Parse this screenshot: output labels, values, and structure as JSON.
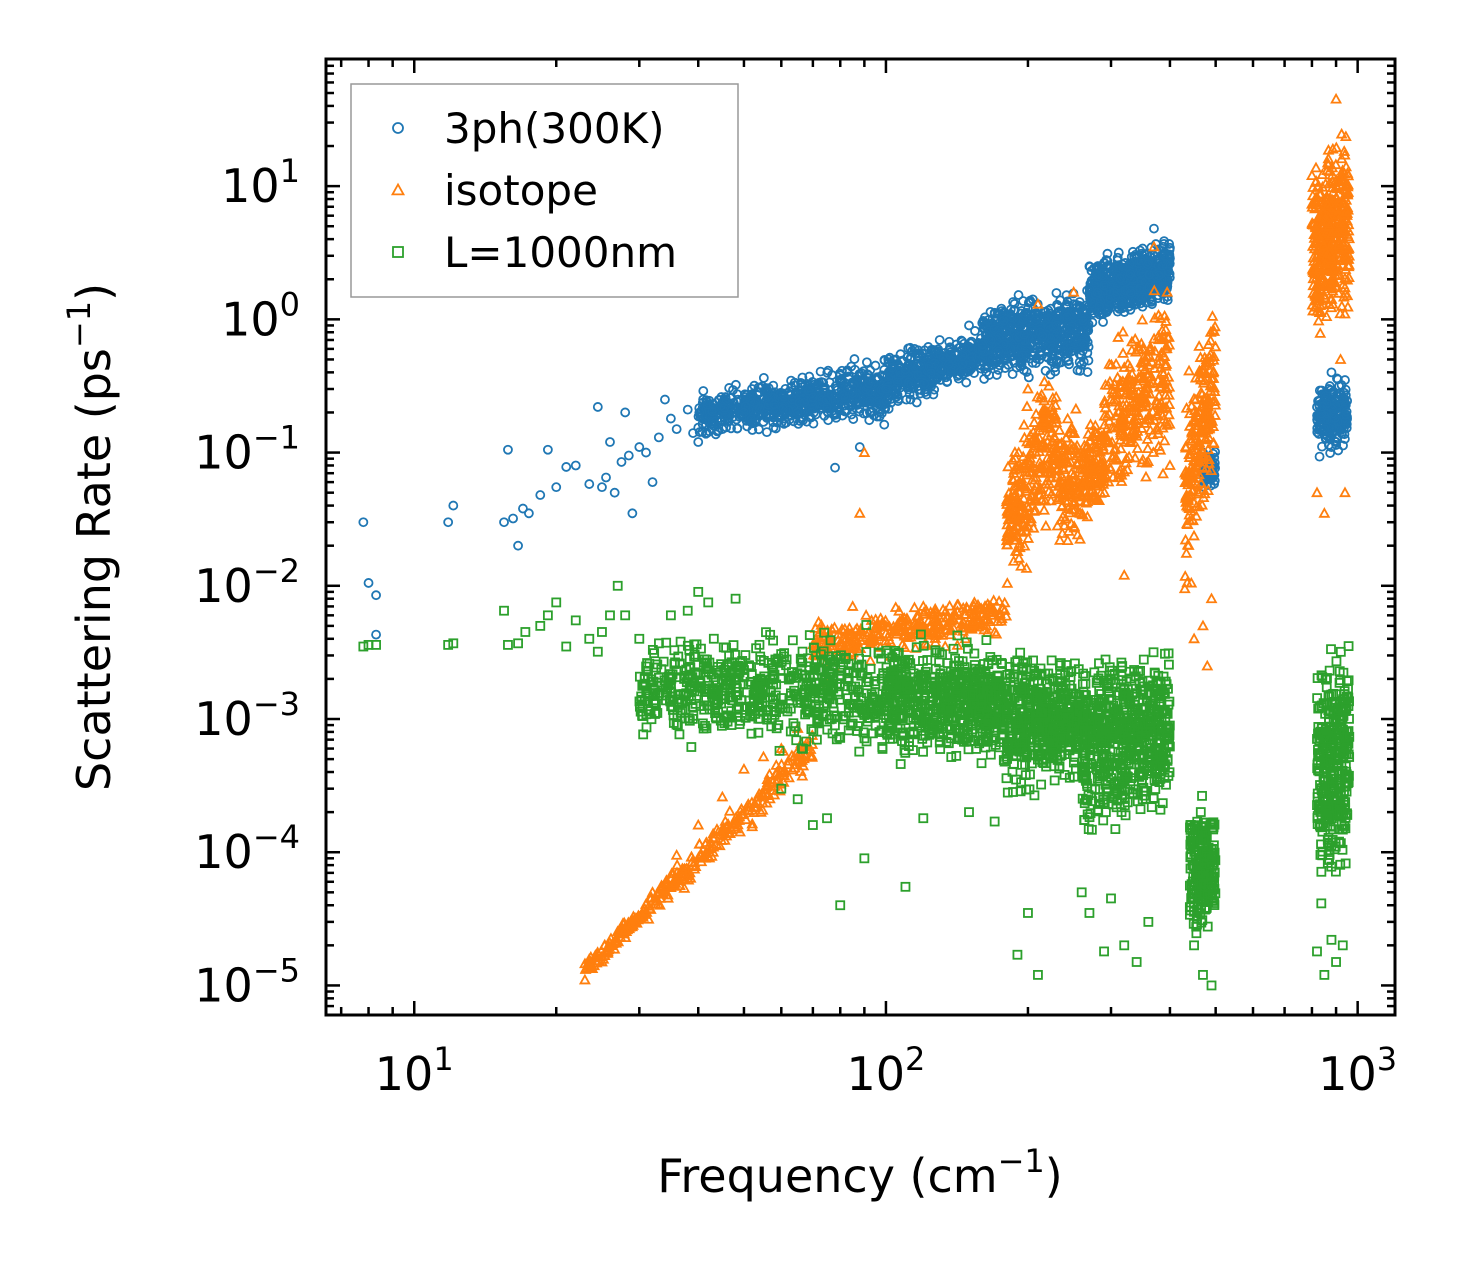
{
  "chart_data": {
    "type": "scatter",
    "title": "",
    "xlabel": "Frequency (cm",
    "xlabel_sup": "−1",
    "xlabel_end": ")",
    "ylabel": "Scattering Rate (ps",
    "ylabel_sup": "−1",
    "ylabel_end": ")",
    "xscale": "log",
    "yscale": "log",
    "xlim": [
      6.5,
      1200
    ],
    "ylim": [
      6e-06,
      90
    ],
    "x_ticks": [
      {
        "base": "10",
        "exp": "1",
        "value": 10
      },
      {
        "base": "10",
        "exp": "2",
        "value": 100
      },
      {
        "base": "10",
        "exp": "3",
        "value": 1000
      }
    ],
    "y_ticks": [
      {
        "base": "10",
        "exp": "1",
        "value": 10
      },
      {
        "base": "10",
        "exp": "0",
        "value": 1
      },
      {
        "base": "10",
        "exp": "−1",
        "value": 0.1
      },
      {
        "base": "10",
        "exp": "−2",
        "value": 0.01
      },
      {
        "base": "10",
        "exp": "−3",
        "value": 0.001
      },
      {
        "base": "10",
        "exp": "−4",
        "value": 0.0001
      },
      {
        "base": "10",
        "exp": "−5",
        "value": 1e-05
      }
    ],
    "legend_position": "top-left",
    "series": [
      {
        "name": "3ph(300K)",
        "marker": "circle",
        "color": "#1f77b4",
        "points": [
          [
            7.8,
            0.03
          ],
          [
            8.0,
            0.0105
          ],
          [
            8.3,
            0.0085
          ],
          [
            8.3,
            0.0043
          ],
          [
            11.8,
            0.03
          ],
          [
            12.1,
            0.04
          ],
          [
            15.5,
            0.03
          ],
          [
            15.8,
            0.105
          ],
          [
            16.2,
            0.032
          ],
          [
            16.6,
            0.02
          ],
          [
            17.0,
            0.038
          ],
          [
            17.5,
            0.035
          ],
          [
            18.5,
            0.048
          ],
          [
            19.2,
            0.105
          ],
          [
            20.0,
            0.055
          ],
          [
            21.0,
            0.078
          ],
          [
            22.0,
            0.08
          ],
          [
            23.5,
            0.058
          ],
          [
            24.5,
            0.22
          ],
          [
            25.0,
            0.055
          ],
          [
            25.5,
            0.065
          ],
          [
            26.0,
            0.12
          ],
          [
            26.6,
            0.05
          ],
          [
            27.5,
            0.085
          ],
          [
            28.0,
            0.2
          ],
          [
            28.5,
            0.095
          ],
          [
            29.0,
            0.035
          ],
          [
            30.0,
            0.11
          ],
          [
            31.0,
            0.1
          ],
          [
            32.0,
            0.06
          ],
          [
            33.0,
            0.13
          ],
          [
            34.0,
            0.25
          ],
          [
            35.0,
            0.18
          ],
          [
            36.0,
            0.15
          ],
          [
            38.0,
            0.21
          ],
          [
            39.0,
            0.14
          ],
          [
            40.0,
            0.12
          ],
          [
            41.0,
            0.29
          ],
          [
            43.0,
            0.23
          ],
          [
            45.0,
            0.15
          ],
          [
            47.0,
            0.26
          ],
          [
            50.0,
            0.2
          ],
          [
            52.0,
            0.3
          ],
          [
            55.0,
            0.17
          ],
          [
            58.0,
            0.23
          ],
          [
            62.0,
            0.28
          ],
          [
            65.0,
            0.2
          ],
          [
            70.0,
            0.26
          ],
          [
            75.0,
            0.22
          ],
          [
            78.0,
            0.077
          ],
          [
            80.0,
            0.38
          ],
          [
            85.0,
            0.3
          ],
          [
            88.0,
            0.11
          ],
          [
            92.0,
            0.33
          ],
          [
            95.0,
            0.45
          ],
          [
            100.0,
            0.3
          ],
          [
            105.0,
            0.5
          ],
          [
            110.0,
            0.42
          ],
          [
            115.0,
            0.6
          ],
          [
            120.0,
            0.52
          ],
          [
            130.0,
            0.7
          ],
          [
            140.0,
            0.55
          ],
          [
            150.0,
            0.9
          ],
          [
            160.0,
            0.65
          ],
          [
            170.0,
            1.1
          ],
          [
            180.0,
            0.8
          ],
          [
            200.0,
            1.2
          ],
          [
            215.0,
            0.75
          ],
          [
            230.0,
            0.9
          ],
          [
            250.0,
            1.3
          ],
          [
            270.0,
            2.5
          ],
          [
            290.0,
            1.8
          ],
          [
            310.0,
            2.9
          ],
          [
            330.0,
            2.2
          ],
          [
            350.0,
            3.4
          ],
          [
            370.0,
            4.8
          ],
          [
            390.0,
            3.0
          ],
          [
            470.0,
            0.1
          ],
          [
            480.0,
            0.065
          ],
          [
            490.0,
            0.08
          ],
          [
            820.0,
            0.22
          ],
          [
            850.0,
            0.15
          ],
          [
            880.0,
            0.4
          ],
          [
            900.0,
            0.12
          ],
          [
            920.0,
            0.28
          ],
          [
            940.0,
            0.35
          ]
        ],
        "bands": [
          {
            "x": [
              40,
              100
            ],
            "ylo": [
              0.12,
              0.15
            ],
            "yhi": [
              0.3,
              0.6
            ],
            "n": 700
          },
          {
            "x": [
              100,
              160
            ],
            "ylo": [
              0.18,
              0.35
            ],
            "yhi": [
              0.6,
              0.9
            ],
            "n": 450
          },
          {
            "x": [
              160,
              270
            ],
            "ylo": [
              0.3,
              0.35
            ],
            "yhi": [
              1.5,
              2.0
            ],
            "n": 650
          },
          {
            "x": [
              270,
              400
            ],
            "ylo": [
              0.8,
              1.2
            ],
            "yhi": [
              3.0,
              4.6
            ],
            "n": 650
          },
          {
            "x": [
              470,
              500
            ],
            "ylo": [
              0.05,
              0.05
            ],
            "yhi": [
              0.11,
              0.11
            ],
            "n": 60
          },
          {
            "x": [
              820,
              950
            ],
            "ylo": [
              0.08,
              0.1
            ],
            "yhi": [
              0.45,
              0.4
            ],
            "n": 220
          }
        ]
      },
      {
        "name": "isotope",
        "marker": "triangle",
        "color": "#ff7f0e",
        "points": [
          [
            23.0,
            1.1e-05
          ],
          [
            25.0,
            1.5e-05
          ],
          [
            28.0,
            2.6e-05
          ],
          [
            32.0,
            5e-05
          ],
          [
            36.0,
            9.5e-05
          ],
          [
            40.0,
            0.00016
          ],
          [
            45.0,
            0.00026
          ],
          [
            50.0,
            0.00042
          ],
          [
            55.0,
            0.00052
          ],
          [
            60.0,
            0.0006
          ],
          [
            65.0,
            0.00085
          ],
          [
            75.0,
            0.0018
          ],
          [
            85.0,
            0.007
          ],
          [
            88.0,
            0.035
          ],
          [
            90.0,
            0.1
          ],
          [
            100.0,
            0.005
          ],
          [
            120.0,
            0.007
          ],
          [
            140.0,
            0.006
          ],
          [
            170.0,
            0.0045
          ],
          [
            190.0,
            0.03
          ],
          [
            200.0,
            0.3
          ],
          [
            210.0,
            1.3
          ],
          [
            220.0,
            0.12
          ],
          [
            250.0,
            1.6
          ],
          [
            280.0,
            0.045
          ],
          [
            300.0,
            0.25
          ],
          [
            320.0,
            0.012
          ],
          [
            350.0,
            0.6
          ],
          [
            370.0,
            3.5
          ],
          [
            400.0,
            0.08
          ],
          [
            430.0,
            0.0095
          ],
          [
            450.0,
            0.004
          ],
          [
            470.0,
            0.005
          ],
          [
            480.0,
            0.0025
          ],
          [
            490.0,
            0.008
          ],
          [
            800.0,
            12.0
          ],
          [
            820.0,
            0.05
          ],
          [
            850.0,
            0.035
          ],
          [
            870.0,
            5.0
          ],
          [
            900.0,
            45.0
          ],
          [
            920.0,
            0.5
          ],
          [
            940.0,
            0.05
          ]
        ],
        "bands": [
          {
            "x": [
              23,
              70
            ],
            "ylo": [
              1.05e-05,
              0.0004
            ],
            "yhi": [
              1.6e-05,
              0.001
            ],
            "n": 320
          },
          {
            "x": [
              70,
              180
            ],
            "ylo": [
              0.002,
              0.004
            ],
            "yhi": [
              0.006,
              0.01
            ],
            "n": 320
          },
          {
            "x": [
              180,
              230
            ],
            "ylo": [
              0.008,
              0.02
            ],
            "yhi": [
              0.1,
              1.0
            ],
            "n": 260
          },
          {
            "x": [
              230,
              290
            ],
            "ylo": [
              0.01,
              0.03
            ],
            "yhi": [
              0.3,
              0.2
            ],
            "n": 240
          },
          {
            "x": [
              290,
              400
            ],
            "ylo": [
              0.03,
              0.06
            ],
            "yhi": [
              0.8,
              2.5
            ],
            "n": 300
          },
          {
            "x": [
              430,
              500
            ],
            "ylo": [
              0.005,
              0.05
            ],
            "yhi": [
              0.5,
              2.0
            ],
            "n": 220
          },
          {
            "x": [
              800,
              960
            ],
            "ylo": [
              0.5,
              0.8
            ],
            "yhi": [
              20.0,
              40.0
            ],
            "n": 420
          }
        ]
      },
      {
        "name": "L=1000nm",
        "marker": "square",
        "color": "#2ca02c",
        "points": [
          [
            7.8,
            0.0035
          ],
          [
            8.0,
            0.0036
          ],
          [
            8.3,
            0.0036
          ],
          [
            11.8,
            0.0036
          ],
          [
            12.1,
            0.0037
          ],
          [
            15.5,
            0.0065
          ],
          [
            15.8,
            0.0036
          ],
          [
            16.6,
            0.0037
          ],
          [
            17.2,
            0.0045
          ],
          [
            18.5,
            0.005
          ],
          [
            19.2,
            0.006
          ],
          [
            20.0,
            0.0075
          ],
          [
            21.0,
            0.0035
          ],
          [
            22.0,
            0.0055
          ],
          [
            23.5,
            0.004
          ],
          [
            24.5,
            0.0032
          ],
          [
            25.0,
            0.0045
          ],
          [
            26.0,
            0.006
          ],
          [
            27.0,
            0.01
          ],
          [
            28.0,
            0.006
          ],
          [
            30.0,
            0.004
          ],
          [
            35.0,
            0.006
          ],
          [
            38.0,
            0.0065
          ],
          [
            40.0,
            0.009
          ],
          [
            42.0,
            0.0075
          ],
          [
            48.0,
            0.008
          ],
          [
            60.0,
            0.0003
          ],
          [
            65.0,
            0.00025
          ],
          [
            70.0,
            0.00016
          ],
          [
            75.0,
            0.00018
          ],
          [
            80.0,
            4e-05
          ],
          [
            90.0,
            9e-05
          ],
          [
            110.0,
            5.5e-05
          ],
          [
            120.0,
            0.00018
          ],
          [
            150.0,
            0.0002
          ],
          [
            170.0,
            0.00017
          ],
          [
            190.0,
            1.7e-05
          ],
          [
            200.0,
            3.5e-05
          ],
          [
            210.0,
            1.2e-05
          ],
          [
            260.0,
            5e-05
          ],
          [
            270.0,
            3.5e-05
          ],
          [
            290.0,
            1.8e-05
          ],
          [
            300.0,
            4.5e-05
          ],
          [
            320.0,
            2e-05
          ],
          [
            340.0,
            1.5e-05
          ],
          [
            360.0,
            3e-05
          ],
          [
            450.0,
            2e-05
          ],
          [
            470.0,
            1.2e-05
          ],
          [
            490.0,
            1e-05
          ],
          [
            820.0,
            1.8e-05
          ],
          [
            850.0,
            1.2e-05
          ],
          [
            880.0,
            2.2e-05
          ],
          [
            900.0,
            1.5e-05
          ],
          [
            930.0,
            2e-05
          ]
        ],
        "bands": [
          {
            "x": [
              30,
              100
            ],
            "ylo": [
              0.0006,
              0.0004
            ],
            "yhi": [
              0.005,
              0.006
            ],
            "n": 650
          },
          {
            "x": [
              100,
              180
            ],
            "ylo": [
              0.0004,
              0.0004
            ],
            "yhi": [
              0.005,
              0.0045
            ],
            "n": 650
          },
          {
            "x": [
              180,
              260
            ],
            "ylo": [
              0.0002,
              0.0003
            ],
            "yhi": [
              0.004,
              0.0035
            ],
            "n": 500
          },
          {
            "x": [
              260,
              400
            ],
            "ylo": [
              0.0001,
              0.00015
            ],
            "yhi": [
              0.004,
              0.0045
            ],
            "n": 650
          },
          {
            "x": [
              440,
              500
            ],
            "ylo": [
              1.5e-05,
              2.5e-05
            ],
            "yhi": [
              0.0003,
              0.0003
            ],
            "n": 200
          },
          {
            "x": [
              820,
              960
            ],
            "ylo": [
              3e-05,
              6e-05
            ],
            "yhi": [
              0.004,
              0.0065
            ],
            "n": 350
          }
        ]
      }
    ]
  }
}
